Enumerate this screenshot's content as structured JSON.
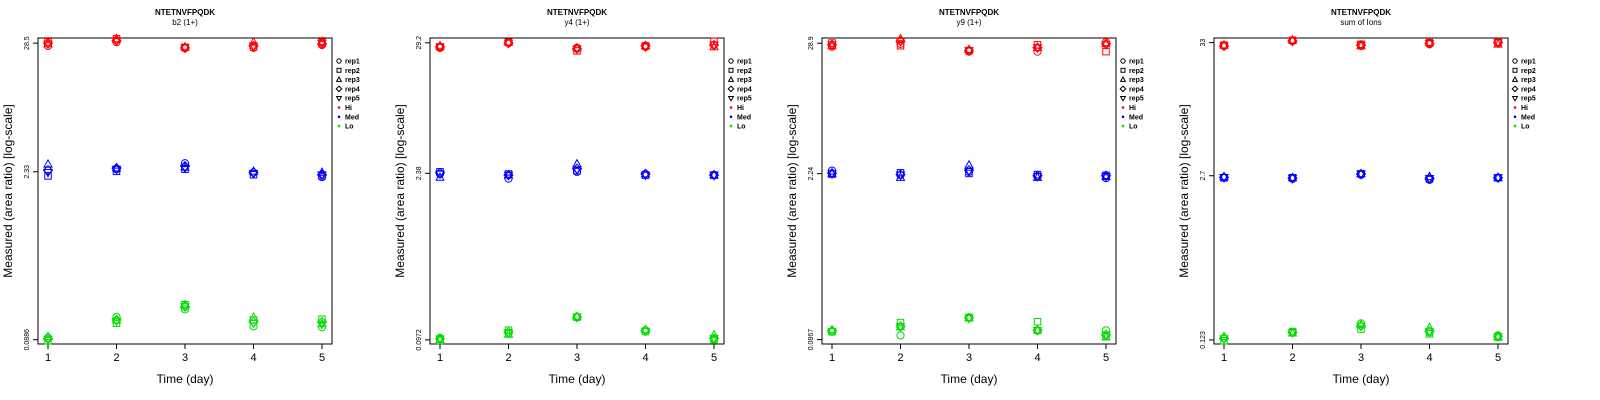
{
  "chart_data": [
    {
      "type": "scatter",
      "title": "NTETNVFPQDK",
      "subtitle": "b2 (1+)",
      "xlabel": "Time (day)",
      "ylabel": "Measured (area ratio) [log-scale]",
      "x": [
        1,
        2,
        3,
        4,
        5
      ],
      "ytick_labels": [
        "28.5",
        "2.33",
        "0.0886"
      ],
      "ylim": [
        0.0815,
        31.5
      ],
      "scale": "log",
      "series": [
        {
          "level": "Hi",
          "replicate": "rep1",
          "values": [
            27.0,
            29.0,
            25.8,
            26.0,
            27.5
          ]
        },
        {
          "level": "Hi",
          "replicate": "rep2",
          "values": [
            29.2,
            31.0,
            26.3,
            26.5,
            29.0
          ]
        },
        {
          "level": "Hi",
          "replicate": "rep3",
          "values": [
            28.0,
            31.0,
            26.5,
            29.0,
            29.5
          ]
        },
        {
          "level": "Hi",
          "replicate": "rep4",
          "values": [
            28.5,
            30.0,
            26.0,
            27.0,
            28.0
          ]
        },
        {
          "level": "Hi",
          "replicate": "rep5",
          "values": [
            28.0,
            30.0,
            26.0,
            27.0,
            28.5
          ]
        },
        {
          "level": "Med",
          "replicate": "rep1",
          "values": [
            2.4,
            2.45,
            2.75,
            2.3,
            2.1
          ]
        },
        {
          "level": "Med",
          "replicate": "rep2",
          "values": [
            2.15,
            2.35,
            2.45,
            2.2,
            2.15
          ]
        },
        {
          "level": "Med",
          "replicate": "rep3",
          "values": [
            2.7,
            2.5,
            2.55,
            2.35,
            2.3
          ]
        },
        {
          "level": "Med",
          "replicate": "rep4",
          "values": [
            2.4,
            2.5,
            2.6,
            2.3,
            2.2
          ]
        },
        {
          "level": "Med",
          "replicate": "rep5",
          "values": [
            2.3,
            2.45,
            2.5,
            2.25,
            2.2
          ]
        },
        {
          "level": "Lo",
          "replicate": "rep1",
          "values": [
            0.092,
            0.138,
            0.16,
            0.115,
            0.113
          ]
        },
        {
          "level": "Lo",
          "replicate": "rep2",
          "values": [
            0.087,
            0.122,
            0.175,
            0.13,
            0.132
          ]
        },
        {
          "level": "Lo",
          "replicate": "rep3",
          "values": [
            0.094,
            0.13,
            0.175,
            0.137,
            0.121
          ]
        },
        {
          "level": "Lo",
          "replicate": "rep4",
          "values": [
            0.09,
            0.13,
            0.168,
            0.125,
            0.125
          ]
        },
        {
          "level": "Lo",
          "replicate": "rep5",
          "values": [
            0.089,
            0.127,
            0.17,
            0.122,
            0.12
          ]
        }
      ]
    },
    {
      "type": "scatter",
      "title": "NTETNVFPQDK",
      "subtitle": "y4 (1+)",
      "xlabel": "Time (day)",
      "ylabel": "Measured (area ratio) [log-scale]",
      "x": [
        1,
        2,
        3,
        4,
        5
      ],
      "ytick_labels": [
        "29.2",
        "2.38",
        "0.0972"
      ],
      "ylim": [
        0.0898,
        32.0
      ],
      "scale": "log",
      "series": [
        {
          "level": "Hi",
          "replicate": "rep1",
          "values": [
            26.5,
            29.0,
            26.5,
            27.0,
            28.0
          ]
        },
        {
          "level": "Hi",
          "replicate": "rep2",
          "values": [
            27.0,
            29.5,
            25.0,
            27.5,
            30.0
          ]
        },
        {
          "level": "Hi",
          "replicate": "rep3",
          "values": [
            27.5,
            29.5,
            26.5,
            27.5,
            27.0
          ]
        },
        {
          "level": "Hi",
          "replicate": "rep4",
          "values": [
            27.0,
            29.0,
            26.0,
            27.5,
            28.0
          ]
        },
        {
          "level": "Hi",
          "replicate": "rep5",
          "values": [
            27.0,
            29.0,
            26.0,
            27.0,
            28.0
          ]
        },
        {
          "level": "Med",
          "replicate": "rep1",
          "values": [
            2.35,
            2.15,
            2.45,
            2.35,
            2.3
          ]
        },
        {
          "level": "Med",
          "replicate": "rep2",
          "values": [
            2.45,
            2.35,
            2.5,
            2.3,
            2.3
          ]
        },
        {
          "level": "Med",
          "replicate": "rep3",
          "values": [
            2.2,
            2.3,
            2.85,
            2.35,
            2.3
          ]
        },
        {
          "level": "Med",
          "replicate": "rep4",
          "values": [
            2.4,
            2.3,
            2.6,
            2.35,
            2.3
          ]
        },
        {
          "level": "Med",
          "replicate": "rep5",
          "values": [
            2.35,
            2.3,
            2.55,
            2.3,
            2.3
          ]
        },
        {
          "level": "Lo",
          "replicate": "rep1",
          "values": [
            0.101,
            0.11,
            0.152,
            0.117,
            0.098
          ]
        },
        {
          "level": "Lo",
          "replicate": "rep2",
          "values": [
            0.096,
            0.117,
            0.15,
            0.114,
            0.097
          ]
        },
        {
          "level": "Lo",
          "replicate": "rep3",
          "values": [
            0.098,
            0.108,
            0.152,
            0.118,
            0.107
          ]
        },
        {
          "level": "Lo",
          "replicate": "rep4",
          "values": [
            0.099,
            0.113,
            0.15,
            0.116,
            0.1
          ]
        },
        {
          "level": "Lo",
          "replicate": "rep5",
          "values": [
            0.099,
            0.112,
            0.151,
            0.115,
            0.1
          ]
        }
      ]
    },
    {
      "type": "scatter",
      "title": "NTETNVFPQDK",
      "subtitle": "y9 (1+)",
      "xlabel": "Time (day)",
      "ylabel": "Measured (area ratio) [log-scale]",
      "x": [
        1,
        2,
        3,
        4,
        5
      ],
      "ytick_labels": [
        "28.9",
        "2.24",
        "0.0867"
      ],
      "ylim": [
        0.0795,
        32.0
      ],
      "scale": "log",
      "series": [
        {
          "level": "Hi",
          "replicate": "rep1",
          "values": [
            27.0,
            28.5,
            24.5,
            24.5,
            29.5
          ]
        },
        {
          "level": "Hi",
          "replicate": "rep2",
          "values": [
            29.0,
            27.5,
            25.0,
            28.0,
            24.5
          ]
        },
        {
          "level": "Hi",
          "replicate": "rep3",
          "values": [
            27.5,
            31.5,
            25.5,
            26.5,
            28.5
          ]
        },
        {
          "level": "Hi",
          "replicate": "rep4",
          "values": [
            28.0,
            30.0,
            25.0,
            26.5,
            28.5
          ]
        },
        {
          "level": "Hi",
          "replicate": "rep5",
          "values": [
            28.0,
            30.0,
            25.0,
            26.5,
            28.0
          ]
        },
        {
          "level": "Med",
          "replicate": "rep1",
          "values": [
            2.38,
            2.18,
            2.32,
            2.12,
            2.05
          ]
        },
        {
          "level": "Med",
          "replicate": "rep2",
          "values": [
            2.22,
            2.28,
            2.25,
            2.2,
            2.17
          ]
        },
        {
          "level": "Med",
          "replicate": "rep3",
          "values": [
            2.25,
            2.08,
            2.65,
            2.08,
            2.12
          ]
        },
        {
          "level": "Med",
          "replicate": "rep4",
          "values": [
            2.26,
            2.2,
            2.4,
            2.15,
            2.15
          ]
        },
        {
          "level": "Med",
          "replicate": "rep5",
          "values": [
            2.24,
            2.18,
            2.35,
            2.12,
            2.12
          ]
        },
        {
          "level": "Lo",
          "replicate": "rep1",
          "values": [
            0.102,
            0.094,
            0.133,
            0.103,
            0.104
          ]
        },
        {
          "level": "Lo",
          "replicate": "rep2",
          "values": [
            0.101,
            0.121,
            0.134,
            0.123,
            0.093
          ]
        },
        {
          "level": "Lo",
          "replicate": "rep3",
          "values": [
            0.105,
            0.111,
            0.132,
            0.104,
            0.091
          ]
        },
        {
          "level": "Lo",
          "replicate": "rep4",
          "values": [
            0.103,
            0.112,
            0.133,
            0.104,
            0.095
          ]
        },
        {
          "level": "Lo",
          "replicate": "rep5",
          "values": [
            0.102,
            0.112,
            0.132,
            0.104,
            0.095
          ]
        }
      ]
    },
    {
      "type": "scatter",
      "title": "NTETNVFPQDK",
      "subtitle": "sum of Ions",
      "xlabel": "Time (day)",
      "ylabel": "Measured (area ratio) [log-scale]",
      "x": [
        1,
        2,
        3,
        4,
        5
      ],
      "ytick_labels": [
        "33",
        "2.7",
        "0.123"
      ],
      "ylim": [
        0.114,
        36.0
      ],
      "scale": "log",
      "series": [
        {
          "level": "Hi",
          "replicate": "rep1",
          "values": [
            31.0,
            34.0,
            31.0,
            32.0,
            33.5
          ]
        },
        {
          "level": "Hi",
          "replicate": "rep2",
          "values": [
            31.5,
            34.5,
            32.0,
            33.0,
            33.0
          ]
        },
        {
          "level": "Hi",
          "replicate": "rep3",
          "values": [
            31.5,
            34.5,
            31.0,
            33.0,
            32.0
          ]
        },
        {
          "level": "Hi",
          "replicate": "rep4",
          "values": [
            31.0,
            34.0,
            31.5,
            32.5,
            33.0
          ]
        },
        {
          "level": "Hi",
          "replicate": "rep5",
          "values": [
            31.0,
            34.0,
            31.5,
            32.5,
            33.0
          ]
        },
        {
          "level": "Med",
          "replicate": "rep1",
          "values": [
            2.6,
            2.55,
            2.75,
            2.5,
            2.6
          ]
        },
        {
          "level": "Med",
          "replicate": "rep2",
          "values": [
            2.6,
            2.6,
            2.8,
            2.55,
            2.6
          ]
        },
        {
          "level": "Med",
          "replicate": "rep3",
          "values": [
            2.65,
            2.6,
            2.8,
            2.65,
            2.6
          ]
        },
        {
          "level": "Med",
          "replicate": "rep4",
          "values": [
            2.62,
            2.58,
            2.78,
            2.58,
            2.6
          ]
        },
        {
          "level": "Med",
          "replicate": "rep5",
          "values": [
            2.62,
            2.58,
            2.78,
            2.56,
            2.6
          ]
        },
        {
          "level": "Lo",
          "replicate": "rep1",
          "values": [
            0.127,
            0.142,
            0.168,
            0.142,
            0.134
          ]
        },
        {
          "level": "Lo",
          "replicate": "rep2",
          "values": [
            0.121,
            0.144,
            0.151,
            0.138,
            0.129
          ]
        },
        {
          "level": "Lo",
          "replicate": "rep3",
          "values": [
            0.131,
            0.14,
            0.164,
            0.155,
            0.131
          ]
        },
        {
          "level": "Lo",
          "replicate": "rep4",
          "values": [
            0.127,
            0.142,
            0.16,
            0.145,
            0.132
          ]
        },
        {
          "level": "Lo",
          "replicate": "rep5",
          "values": [
            0.126,
            0.141,
            0.16,
            0.144,
            0.131
          ]
        }
      ]
    }
  ],
  "legend": {
    "placement": "right",
    "replicates": [
      {
        "label": "rep1",
        "symbol": "circle"
      },
      {
        "label": "rep2",
        "symbol": "square"
      },
      {
        "label": "rep3",
        "symbol": "triangle-up"
      },
      {
        "label": "rep4",
        "symbol": "diamond"
      },
      {
        "label": "rep5",
        "symbol": "triangle-down"
      }
    ],
    "levels": [
      {
        "label": "Hi",
        "color": "#ff0000"
      },
      {
        "label": "Med",
        "color": "#0000ff"
      },
      {
        "label": "Lo",
        "color": "#00dd00"
      }
    ]
  },
  "colors": {
    "Hi": "#ff0000",
    "Med": "#0000ff",
    "Lo": "#00dd00",
    "axis": "#000000"
  }
}
